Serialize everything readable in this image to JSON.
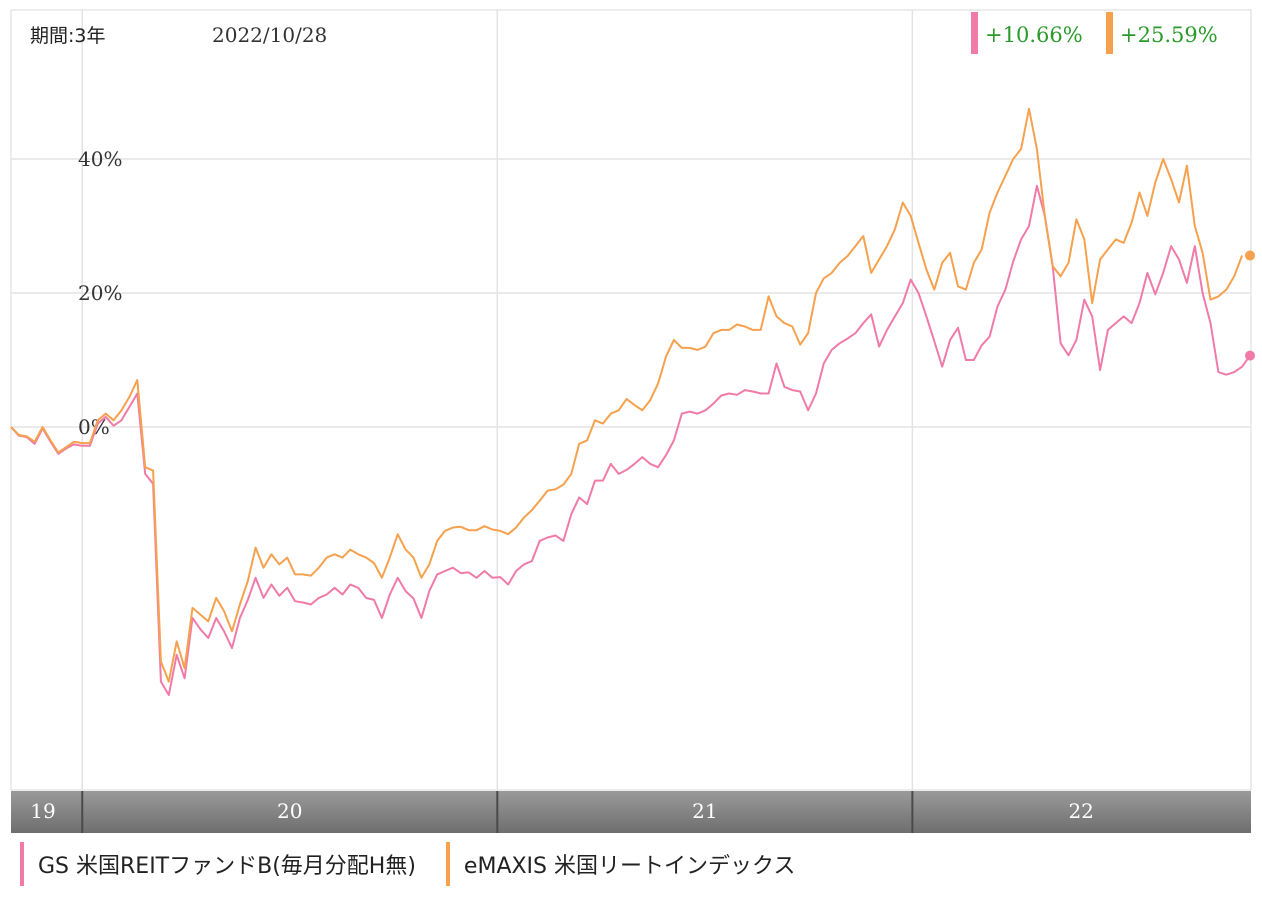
{
  "header": {
    "period_label": "期間:3年",
    "date_label": "2022/10/28"
  },
  "colors": {
    "gs": "#f07ba8",
    "emaxis": "#f5a14e",
    "positive": "#2a9a2a"
  },
  "chart_data": {
    "type": "line",
    "title": "",
    "xlabel": "",
    "ylabel": "",
    "ylim": [
      -55,
      63
    ],
    "yticks": [
      {
        "value": 40,
        "label": "40%"
      },
      {
        "value": 20,
        "label": "20%"
      },
      {
        "value": 0,
        "label": "0%"
      }
    ],
    "x_range": [
      0,
      200
    ],
    "year_boundaries": [
      {
        "label": "19",
        "start": 0,
        "end": 11.5
      },
      {
        "label": "20",
        "start": 11.5,
        "end": 78.5
      },
      {
        "label": "21",
        "start": 78.5,
        "end": 145.5
      },
      {
        "label": "22",
        "start": 145.5,
        "end": 200
      }
    ],
    "series": [
      {
        "name": "GS 米国REITファンドB(毎月分配H無)",
        "color_key": "gs",
        "final_return": "+10.66%",
        "values": [
          0,
          -1.3,
          -1.5,
          -2.5,
          -0.2,
          -2.2,
          -4,
          -3.2,
          -2.6,
          -2.8,
          -2.8,
          0.5,
          1.5,
          0.2,
          1,
          3,
          5,
          -7,
          -8.5,
          -38,
          -40,
          -34,
          -37.5,
          -28.5,
          -30.2,
          -31.5,
          -28.5,
          -30.5,
          -33,
          -28.5,
          -25.8,
          -22.5,
          -25.5,
          -23.5,
          -25.2,
          -24,
          -26,
          -26.2,
          -26.5,
          -25.5,
          -25,
          -24,
          -25,
          -23.5,
          -24,
          -25.5,
          -25.8,
          -28.5,
          -25,
          -22.5,
          -24.5,
          -25.6,
          -28.5,
          -24.5,
          -22,
          -21.5,
          -21,
          -21.8,
          -21.7,
          -22.5,
          -21.5,
          -22.5,
          -22.4,
          -23.5,
          -21.5,
          -20.5,
          -20,
          -17,
          -16.5,
          -16.2,
          -17,
          -13,
          -10.5,
          -11.5,
          -8,
          -8,
          -5.5,
          -7,
          -6.4,
          -5.5,
          -4.5,
          -5.5,
          -6,
          -4.2,
          -2,
          2,
          2.3,
          2,
          2.5,
          3.5,
          4.7,
          5,
          4.8,
          5.5,
          5.3,
          5,
          5,
          9.5,
          6,
          5.5,
          5.3,
          2.5,
          5,
          9.5,
          11.5,
          12.5,
          13.2,
          14,
          15.5,
          16.8,
          12,
          14.5,
          16.5,
          18.5,
          22,
          20,
          16.5,
          12.8,
          9,
          13,
          14.8,
          10,
          10,
          12.2,
          13.5,
          18,
          20.5,
          24.7,
          28,
          30,
          36,
          31.5,
          24,
          12.5,
          10.7,
          13,
          19,
          16.5,
          8.5,
          14.5,
          15.5,
          16.5,
          15.5,
          18.5,
          23,
          19.8,
          23,
          27,
          25,
          21.5,
          27,
          20,
          15.5,
          8.2,
          7.8,
          8.2,
          9,
          10.66
        ]
      },
      {
        "name": "eMAXIS 米国リートインデックス",
        "color_key": "emaxis",
        "final_return": "+25.59%",
        "values": [
          0,
          -1.2,
          -1.4,
          -2.2,
          0,
          -2,
          -3.8,
          -3,
          -2.2,
          -2.4,
          -2.4,
          1,
          2,
          1,
          2.5,
          4.5,
          7,
          -6,
          -6.5,
          -35,
          -38,
          -32,
          -36,
          -27,
          -28,
          -29,
          -25.5,
          -27.5,
          -30.5,
          -26.5,
          -23,
          -18,
          -21,
          -19,
          -20.5,
          -19.5,
          -22,
          -22,
          -22.2,
          -21,
          -19.5,
          -19,
          -19.5,
          -18.3,
          -19,
          -19.5,
          -20.3,
          -22.5,
          -19.5,
          -16,
          -18.3,
          -19.5,
          -22.5,
          -20.5,
          -17,
          -15.5,
          -15,
          -14.9,
          -15.4,
          -15.4,
          -14.8,
          -15.3,
          -15.5,
          -16,
          -15,
          -13.5,
          -12.4,
          -11,
          -9.5,
          -9.3,
          -8.6,
          -7,
          -2.5,
          -2,
          1,
          0.5,
          2,
          2.5,
          4.2,
          3.3,
          2.5,
          4,
          6.5,
          10.5,
          13,
          11.8,
          11.8,
          11.5,
          12,
          14,
          14.5,
          14.5,
          15.3,
          15,
          14.5,
          14.5,
          19.5,
          16.5,
          15.5,
          15,
          12.3,
          14,
          20,
          22.2,
          23,
          24.5,
          25.5,
          27,
          28.5,
          23,
          25,
          27,
          29.5,
          33.5,
          31.5,
          27.5,
          23.5,
          20.5,
          24.5,
          26,
          21,
          20.5,
          24.5,
          26.5,
          32,
          35,
          37.5,
          40,
          41.5,
          47.5,
          41.5,
          31.5,
          24,
          22.5,
          24.5,
          31,
          28,
          18.5,
          25,
          26.5,
          28,
          27.5,
          30.5,
          35,
          31.5,
          36.5,
          40,
          37,
          33.5,
          39,
          30,
          26,
          19,
          19.5,
          20.5,
          22.5,
          25.59
        ]
      }
    ]
  }
}
